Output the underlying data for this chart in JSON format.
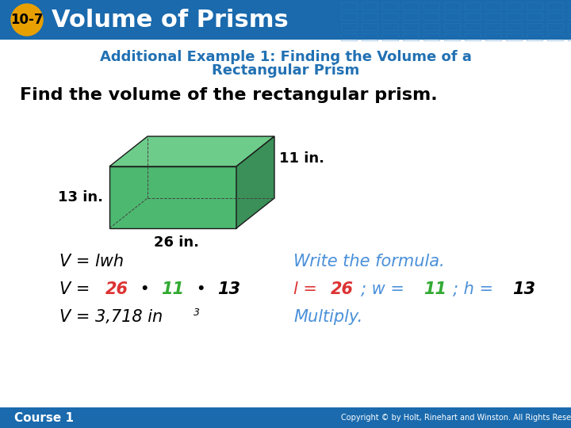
{
  "header_bg_color": "#1a6aad",
  "header_text": "Volume of Prisms",
  "header_badge_text": "10-7",
  "header_badge_bg": "#e8a000",
  "header_badge_text_color": "#000000",
  "header_text_color": "#ffffff",
  "header_grid_color": "#2a7abf",
  "body_bg_color": "#ffffff",
  "subtitle_text_line1": "Additional Example 1: Finding the Volume of a",
  "subtitle_text_line2": "Rectangular Prism",
  "subtitle_color": "#2271b3",
  "intro_text": "Find the volume of the rectangular prism.",
  "intro_color": "#000000",
  "dim_l": "26 in.",
  "dim_w": "11 in.",
  "dim_h": "13 in.",
  "prism_front_color": "#4db870",
  "prism_top_color": "#6dcc8a",
  "prism_right_color": "#3a9058",
  "prism_edge_color": "#1a1a1a",
  "row1_left": "V = lwh",
  "row1_right": "Write the formula.",
  "row3_left": "V = 3,718 in",
  "row3_right": "Multiply.",
  "formula_color": "#000000",
  "italic_blue": "#4a90d9",
  "red_color": "#dd3333",
  "green_color": "#33aa33",
  "footer_text": "Course 1",
  "footer_color": "#ffffff",
  "footer_bg": "#1a6aad",
  "copyright_text": "Copyright © by Holt, Rinehart and Winston. All Rights Reserved.",
  "copyright_color": "#ffffff"
}
